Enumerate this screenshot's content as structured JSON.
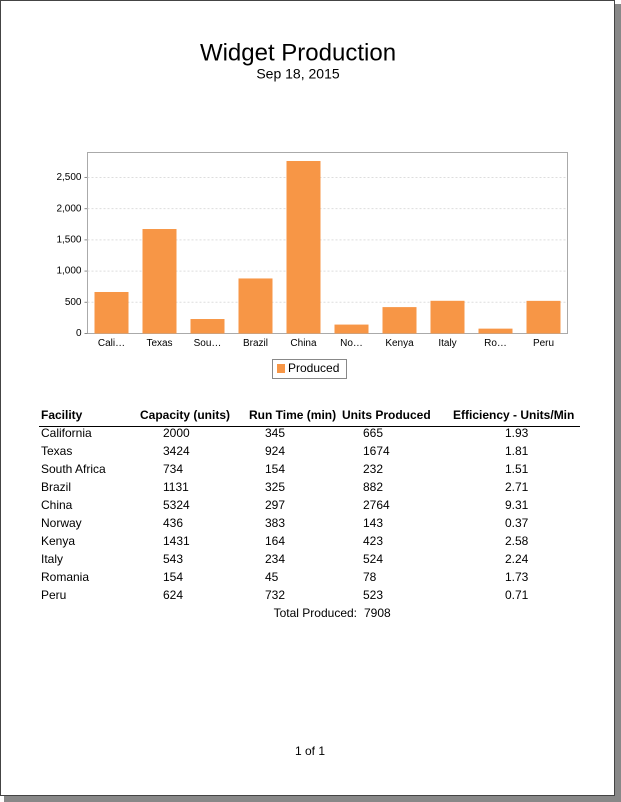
{
  "header": {
    "title": "Widget Production",
    "subtitle": "Sep 18, 2015"
  },
  "chart_data": {
    "type": "bar",
    "categories": [
      "Cali…",
      "Texas",
      "Sou…",
      "Brazil",
      "China",
      "No…",
      "Kenya",
      "Italy",
      "Ro…",
      "Peru"
    ],
    "series": [
      {
        "name": "Produced",
        "color": "#f79646",
        "values": [
          665,
          1674,
          232,
          882,
          2764,
          143,
          423,
          524,
          78,
          523
        ]
      }
    ],
    "ylim": [
      0,
      2900
    ],
    "yticks": [
      0,
      500,
      {
        "value": 1000,
        "label": "1,000"
      },
      {
        "value": 1500,
        "label": "1,500"
      },
      {
        "value": 2000,
        "label": "2,000"
      },
      {
        "value": 2500,
        "label": "2,500"
      }
    ],
    "grid": true,
    "legend": "bottom"
  },
  "table": {
    "columns": [
      "Facility",
      "Capacity (units)",
      "Run Time (min)",
      "Units Produced",
      "Efficiency - Units/Min"
    ],
    "rows": [
      [
        "California",
        2000,
        345,
        665,
        1.93
      ],
      [
        "Texas",
        3424,
        924,
        1674,
        1.81
      ],
      [
        "South Africa",
        734,
        154,
        232,
        1.51
      ],
      [
        "Brazil",
        1131,
        325,
        882,
        2.71
      ],
      [
        "China",
        5324,
        297,
        2764,
        9.31
      ],
      [
        "Norway",
        436,
        383,
        143,
        0.37
      ],
      [
        "Kenya",
        1431,
        164,
        423,
        2.58
      ],
      [
        "Italy",
        543,
        234,
        524,
        2.24
      ],
      [
        "Romania",
        154,
        45,
        78,
        1.73
      ],
      [
        "Peru",
        624,
        732,
        523,
        0.71
      ]
    ]
  },
  "total": {
    "label": "Total Produced:",
    "value": 7908
  },
  "footer": {
    "page": "1 of 1"
  }
}
